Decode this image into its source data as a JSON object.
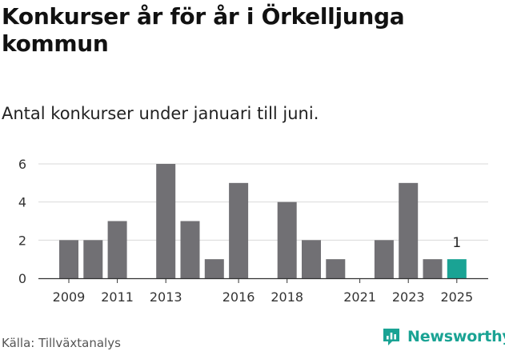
{
  "title": "Konkurser år för år i Örkelljunga kommun",
  "subtitle": "Antal konkurser under januari till juni.",
  "source": "Källa: Tillväxtanalys",
  "brand": {
    "name": "Newsworthy",
    "icon": "newsworthy-logo-icon",
    "color": "#1aa394"
  },
  "colors": {
    "bar": "#717074",
    "highlight": "#1aa394",
    "grid": "#d9d9d9",
    "axis": "#333333"
  },
  "chart_data": {
    "type": "bar",
    "title": "Konkurser år för år i Örkelljunga kommun",
    "subtitle": "Antal konkurser under januari till juni.",
    "xlabel": "",
    "ylabel": "",
    "categories": [
      "2009",
      "2010",
      "2011",
      "2012",
      "2013",
      "2014",
      "2015",
      "2016",
      "2017",
      "2018",
      "2019",
      "2020",
      "2021",
      "2022",
      "2023",
      "2024",
      "2025"
    ],
    "values": [
      2,
      2,
      3,
      0,
      6,
      3,
      1,
      5,
      0,
      4,
      2,
      1,
      0,
      2,
      5,
      1,
      1
    ],
    "x_tick_labels": [
      "2009",
      "2011",
      "2013",
      "2016",
      "2018",
      "2021",
      "2023",
      "2025"
    ],
    "y_ticks": [
      0,
      2,
      4,
      6
    ],
    "ylim": [
      0,
      6
    ],
    "grid": true,
    "highlight_category": "2025",
    "annotations": [
      {
        "category": "2025",
        "text": "1"
      }
    ]
  }
}
